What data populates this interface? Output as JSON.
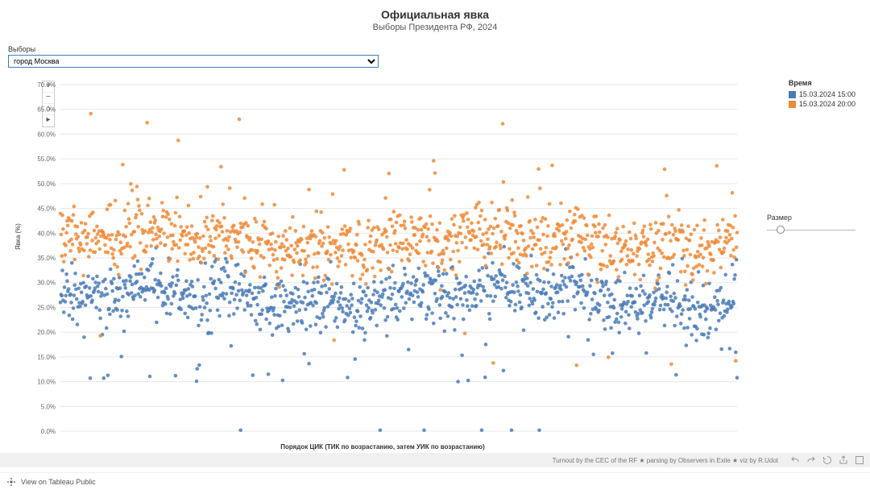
{
  "header": {
    "title": "Официальная явка",
    "subtitle": "Выборы Президента РФ, 2024"
  },
  "filter": {
    "label": "Выборы",
    "selected": "город Москва"
  },
  "zoom": {
    "plus": "+",
    "minus": "−",
    "home": "⌂",
    "arrow": "▸"
  },
  "legend": {
    "title": "Время",
    "items": [
      {
        "label": "15.03.2024 15:00",
        "color": "#4a7bb7"
      },
      {
        "label": "15.03.2024 20:00",
        "color": "#ef8a36"
      }
    ]
  },
  "size_control": {
    "label": "Размер",
    "knob_pct": 12
  },
  "axes": {
    "y_label": "Явка (%)",
    "x_label": "Порядок ЦИК (ТИК по возрастанию, затем УИК по возрастанию)"
  },
  "chart": {
    "type": "scatter",
    "ylim": [
      0,
      70
    ],
    "ytick_step": 5,
    "ytick_format": "percent_one_decimal",
    "x_count": 1000,
    "background_color": "#ffffff",
    "grid_color": "#e7e7e7",
    "marker_size": 2.3,
    "series": {
      "blue": {
        "color": "#4a7bb7",
        "mean": 27,
        "std": 3.0,
        "low_tail_prob": 0.03,
        "low_tail_min": 10,
        "low_tail_max": 20,
        "extreme_low_prob": 0.003,
        "extreme_low_val": 0.2
      },
      "orange": {
        "color": "#ef8a36",
        "mean": 38.5,
        "std": 3.2,
        "high_tail_prob": 0.02,
        "high_tail_min": 46,
        "high_tail_max": 55,
        "extreme_high_prob": 0.004,
        "extreme_high_min": 58,
        "extreme_high_max": 69,
        "low_dip_prob": 0.008,
        "low_dip_min": 12,
        "low_dip_max": 20
      }
    }
  },
  "footer": {
    "credit": "Turnout by the CEC of the RF ★ parsing by Observers in Exile ★ viz by R.Udot"
  },
  "bottom": {
    "view_label": "View on Tableau Public"
  }
}
